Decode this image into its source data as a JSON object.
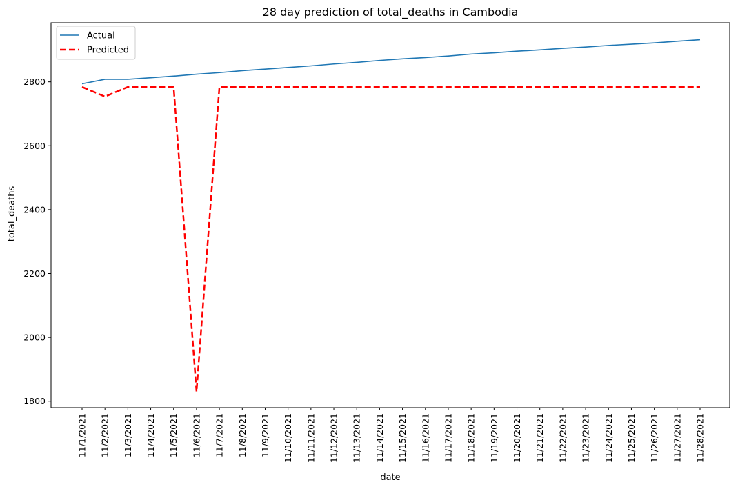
{
  "chart_data": {
    "type": "line",
    "title": "28 day prediction of total_deaths in Cambodia",
    "xlabel": "date",
    "ylabel": "total_deaths",
    "x": [
      "11/1/2021",
      "11/2/2021",
      "11/3/2021",
      "11/4/2021",
      "11/5/2021",
      "11/6/2021",
      "11/7/2021",
      "11/8/2021",
      "11/9/2021",
      "11/10/2021",
      "11/11/2021",
      "11/12/2021",
      "11/13/2021",
      "11/14/2021",
      "11/15/2021",
      "11/16/2021",
      "11/17/2021",
      "11/18/2021",
      "11/19/2021",
      "11/20/2021",
      "11/21/2021",
      "11/22/2021",
      "11/23/2021",
      "11/24/2021",
      "11/25/2021",
      "11/26/2021",
      "11/27/2021",
      "11/28/2021"
    ],
    "ylim": [
      1780,
      2985
    ],
    "yticks": [
      1800,
      2000,
      2200,
      2400,
      2600,
      2800
    ],
    "grid": false,
    "legend": "top-left",
    "series": [
      {
        "name": "Actual",
        "color": "#1f77b4",
        "style": "solid",
        "values": [
          2794,
          2808,
          2808,
          2813,
          2818,
          2824,
          2829,
          2835,
          2840,
          2845,
          2850,
          2856,
          2861,
          2867,
          2872,
          2876,
          2881,
          2887,
          2891,
          2896,
          2900,
          2905,
          2909,
          2914,
          2918,
          2922,
          2927,
          2932
        ]
      },
      {
        "name": "Predicted",
        "color": "#ff0000",
        "style": "dashed",
        "values": [
          2784,
          2754,
          2784,
          2784,
          2784,
          1830,
          2784,
          2784,
          2784,
          2784,
          2784,
          2784,
          2784,
          2784,
          2784,
          2784,
          2784,
          2784,
          2784,
          2784,
          2784,
          2784,
          2784,
          2784,
          2784,
          2784,
          2784,
          2784
        ]
      }
    ]
  }
}
